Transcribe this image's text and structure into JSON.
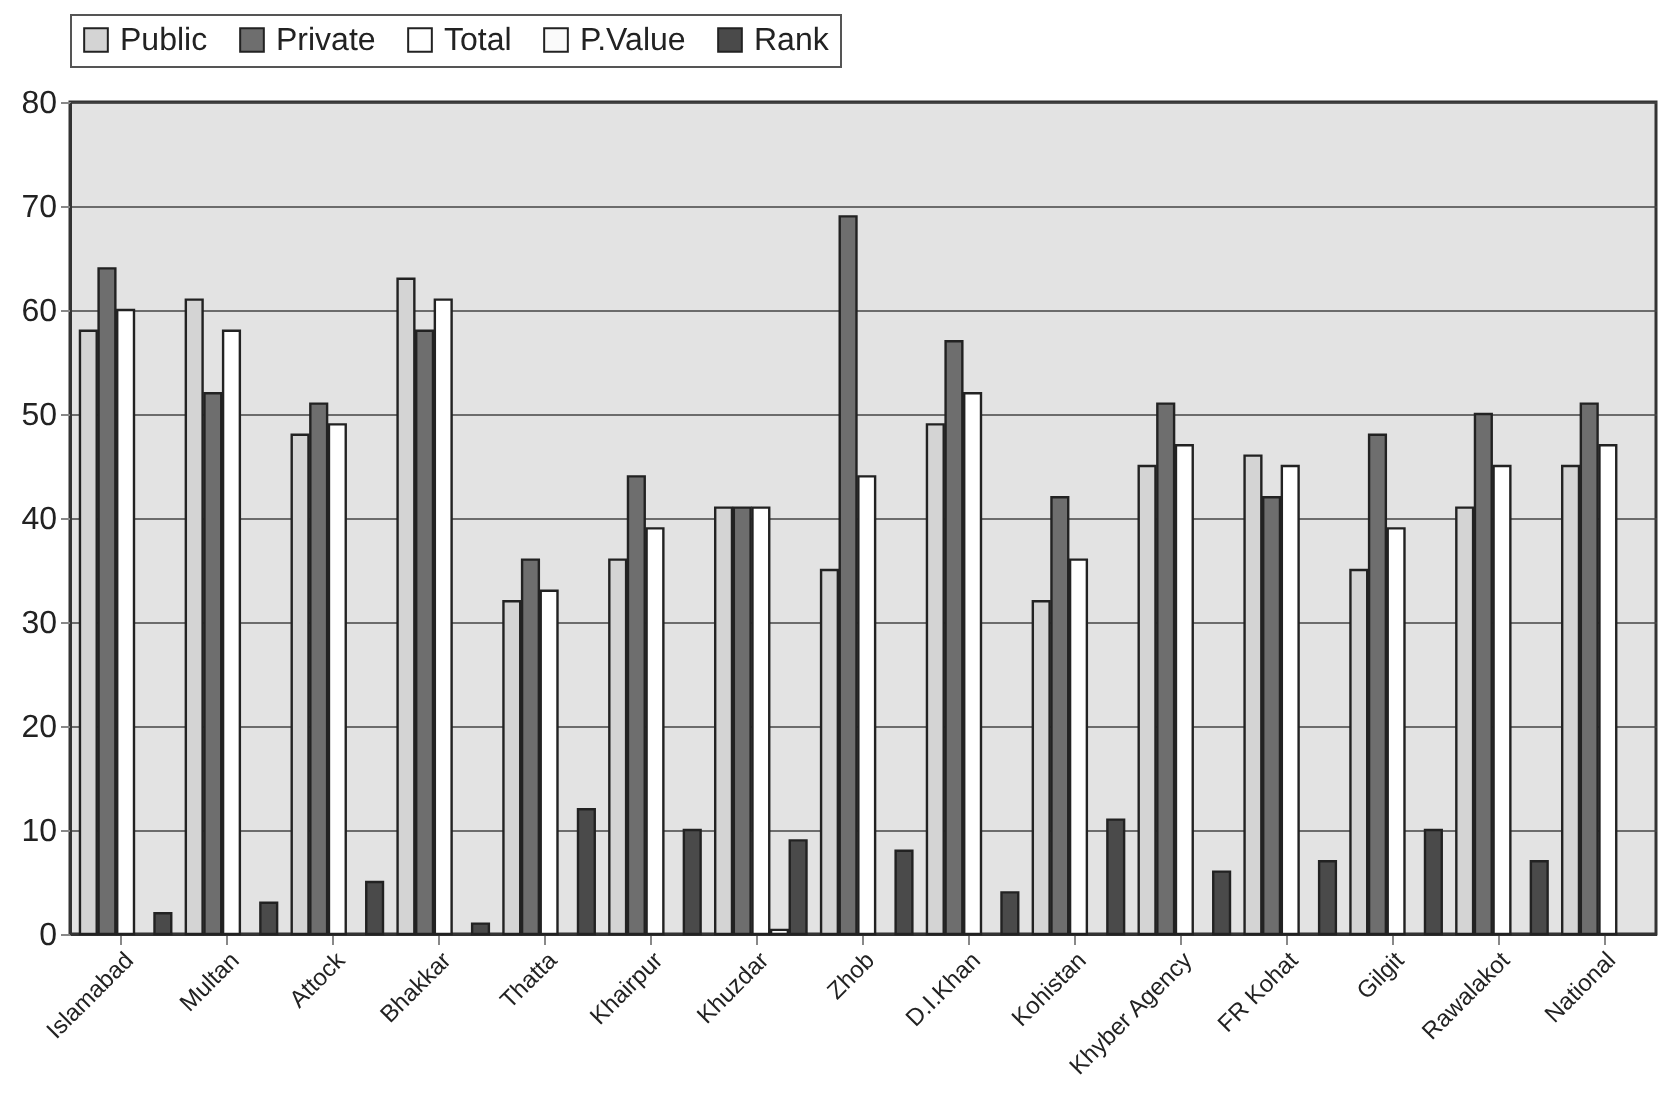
{
  "chart_data": {
    "type": "bar",
    "categories": [
      "Islamabad",
      "Multan",
      "Attock",
      "Bhakkar",
      "Thatta",
      "Khairpur",
      "Khuzdar",
      "Zhob",
      "D.I.Khan",
      "Kohistan",
      "Khyber Agency",
      "FR Kohat",
      "Gilgit",
      "Rawalakot",
      "National"
    ],
    "series": [
      {
        "name": "Public",
        "color": "#d4d4d4",
        "values": [
          58,
          61,
          48,
          63,
          32,
          36,
          41,
          35,
          49,
          32,
          45,
          46,
          35,
          41,
          45
        ]
      },
      {
        "name": "Private",
        "color": "#6e6e6e",
        "values": [
          64,
          52,
          51,
          58,
          36,
          44,
          41,
          69,
          57,
          42,
          51,
          42,
          48,
          50,
          51
        ]
      },
      {
        "name": "Total",
        "color": "#ffffff",
        "values": [
          60,
          58,
          49,
          61,
          33,
          39,
          41,
          44,
          52,
          36,
          47,
          45,
          39,
          45,
          47
        ]
      },
      {
        "name": "P.Value",
        "color": "#fafafa",
        "values": [
          0,
          0,
          0,
          0,
          0,
          0,
          0.4,
          0,
          0,
          0,
          0,
          0,
          0,
          0,
          0
        ]
      },
      {
        "name": "Rank",
        "color": "#4a4a4a",
        "values": [
          2,
          3,
          5,
          1,
          12,
          10,
          9,
          8,
          4,
          11,
          6,
          7,
          10,
          7,
          null
        ]
      }
    ],
    "ylim": [
      0,
      80
    ],
    "yticks": [
      0,
      10,
      20,
      30,
      40,
      50,
      60,
      70,
      80
    ],
    "grid": "y",
    "legend": "top"
  }
}
